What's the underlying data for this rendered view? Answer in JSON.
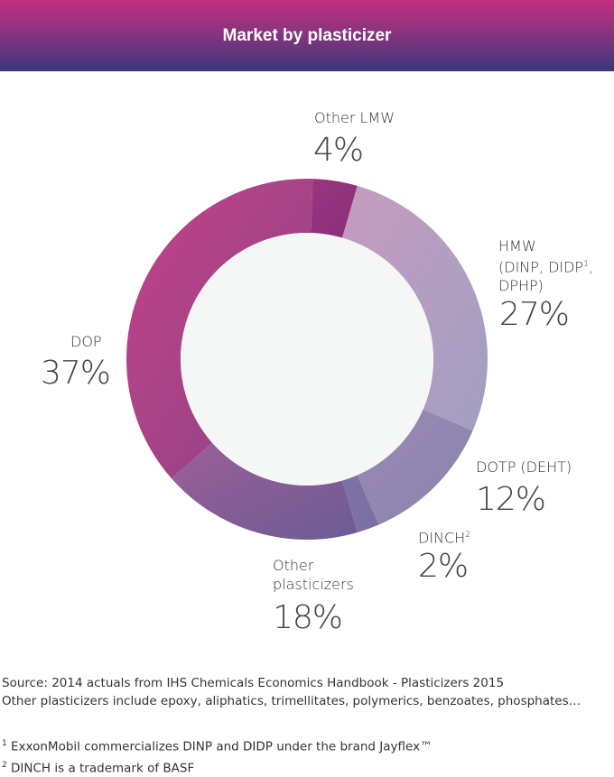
{
  "header": {
    "title": "Market by plasticizer"
  },
  "chart_data": {
    "type": "pie",
    "title": "Market by plasticizer",
    "donut": true,
    "slices": [
      {
        "label": "Other LMW",
        "value": 4,
        "display": "4%",
        "colors": [
          "#993680",
          "#8a2e78"
        ]
      },
      {
        "label": "HMW (DINP, DIDP, DPHP)",
        "value": 27,
        "display": "27%",
        "colors": [
          "#c69cc0",
          "#a19fc1"
        ]
      },
      {
        "label": "DOTP (DEHT)",
        "value": 12,
        "display": "12%",
        "colors": [
          "#9a88b4",
          "#8a86ae"
        ]
      },
      {
        "label": "DINCH",
        "value": 2,
        "display": "2%",
        "colors": [
          "#7e72a4",
          "#7a70a2"
        ]
      },
      {
        "label": "Other plasticizers",
        "value": 18,
        "display": "18%",
        "colors": [
          "#9c5e98",
          "#6c5c94"
        ]
      },
      {
        "label": "DOP",
        "value": 37,
        "display": "37%",
        "colors": [
          "#c4428a",
          "#8a4484"
        ]
      }
    ]
  },
  "labels": {
    "other_lmw": "Other LMW",
    "hmw_1": "HMW",
    "hmw_2": "(DINP, DIDP",
    "hmw_2_sup": "1",
    "hmw_2_end": ",",
    "hmw_3": "DPHP)",
    "dotp": "DOTP (DEHT)",
    "dinch": "DINCH",
    "dinch_sup": "2",
    "other_1": "Other",
    "other_2": "plasticizers",
    "dop": "DOP"
  },
  "footer": {
    "source": "Source: 2014 actuals from IHS Chemicals Economics Handbook - Plasticizers 2015",
    "note": "Other plasticizers include epoxy, aliphatics, trimellitates, polymerics, benzoates, phosphates…",
    "fn1_mark": "1",
    "fn1": " ExxonMobil commercializes DINP and DIDP under the brand Jayflex™",
    "fn2_mark": "2",
    "fn2": " DINCH is a trademark of BASF"
  }
}
